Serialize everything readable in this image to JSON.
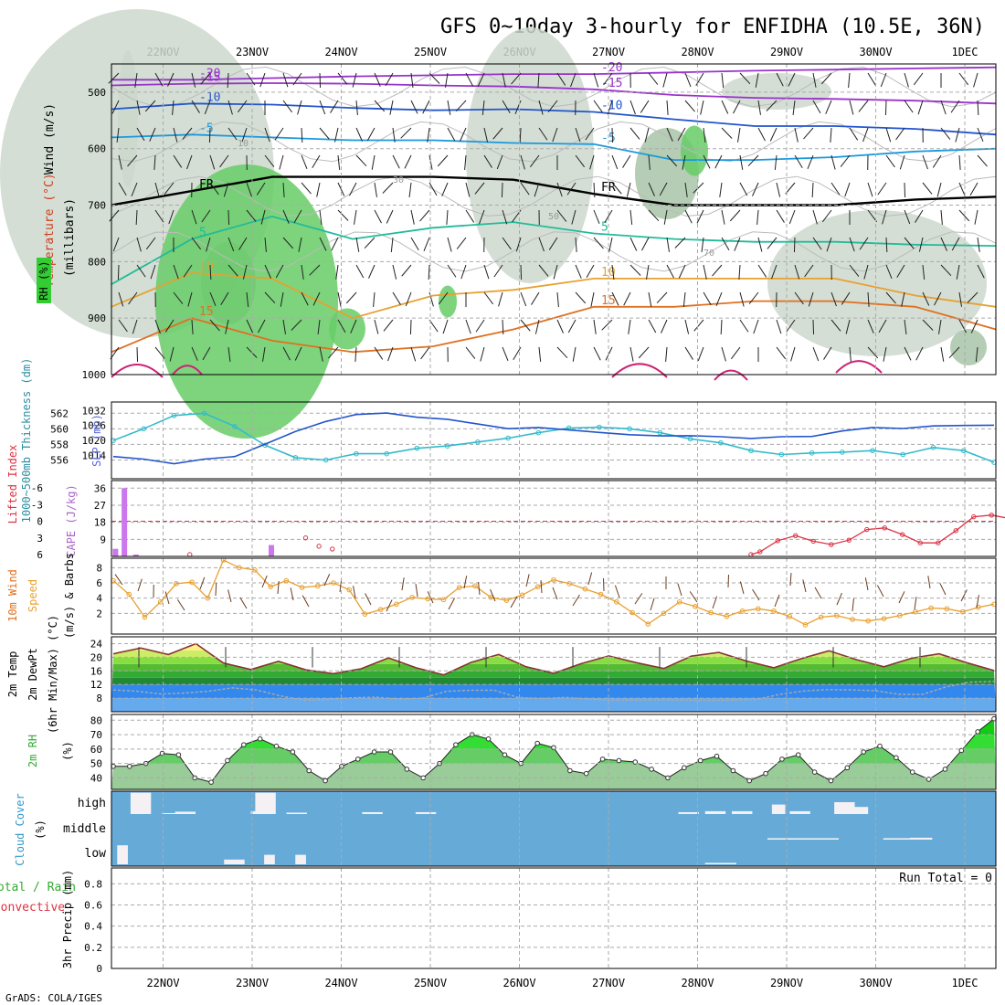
{
  "title": "GFS 0~10day 3-hourly for ENFIDHA (10.5E, 36N)",
  "credit": "GrADS: COLA/IGES",
  "dates": [
    "22NOV",
    "23NOV",
    "24NOV",
    "25NOV",
    "26NOV",
    "27NOV",
    "28NOV",
    "29NOV",
    "30NOV",
    "1DEC"
  ],
  "colors": {
    "rh": "#33cc33",
    "temp": "#e8a030",
    "purple": "#9933cc",
    "blue": "#2255cc",
    "cyan": "#33bbcc",
    "red": "#dd3344",
    "sky": "#66aad8"
  },
  "chart_data": [
    {
      "type": "contour",
      "name": "upper-air",
      "ylabel_wind": "Wind (m/s)",
      "ylabel_temp": "Temperature (°C)",
      "ylabel_rh": "RH (%)",
      "ylabel_p": "(millibars)",
      "yticks": [
        "500",
        "600",
        "700",
        "800",
        "900",
        "1000"
      ],
      "ylim": [
        450,
        1000
      ],
      "temp_contours": [
        {
          "label": "-20",
          "color": "#9933cc",
          "p": [
            478,
            478,
            475,
            472,
            470,
            468,
            468,
            465,
            462,
            460,
            458,
            456
          ]
        },
        {
          "label": "-15",
          "color": "#9933cc",
          "p": [
            488,
            485,
            484,
            485,
            488,
            490,
            495,
            505,
            510,
            512,
            515,
            520
          ]
        },
        {
          "label": "-10",
          "color": "#2255cc",
          "p": [
            530,
            520,
            522,
            528,
            532,
            530,
            535,
            548,
            560,
            560,
            565,
            575
          ]
        },
        {
          "label": "-5",
          "color": "#1a99dd",
          "p": [
            580,
            575,
            580,
            585,
            585,
            590,
            592,
            620,
            620,
            615,
            605,
            600
          ]
        },
        {
          "label": "FR",
          "color": "#000000",
          "p": [
            700,
            675,
            650,
            650,
            650,
            655,
            680,
            700,
            700,
            700,
            690,
            685
          ]
        },
        {
          "label": "5",
          "color": "#22bb99",
          "p": [
            840,
            760,
            720,
            760,
            740,
            730,
            750,
            760,
            765,
            765,
            770,
            772
          ]
        },
        {
          "label": "10",
          "color": "#e8a030",
          "p": [
            880,
            820,
            830,
            900,
            860,
            850,
            830,
            830,
            830,
            830,
            860,
            880
          ]
        },
        {
          "label": "15",
          "color": "#e07020",
          "p": [
            960,
            900,
            940,
            960,
            950,
            920,
            880,
            880,
            870,
            870,
            880,
            920
          ]
        }
      ],
      "contour_labels": [
        "-20",
        "-15",
        "-15",
        "-10",
        "-10",
        "-5",
        "-5",
        "FR",
        "FR",
        "5",
        "5",
        "10",
        "10",
        "15",
        "15",
        "10",
        "30",
        "50",
        "70",
        "90"
      ]
    },
    {
      "type": "line",
      "name": "slp-thickness",
      "ylabel_thk": "1000~500mb Thickness (dm)",
      "ylabel_slp": "SLP (mb)",
      "yticks_thk": [
        "556",
        "558",
        "560",
        "562"
      ],
      "yticks_slp": [
        "1014",
        "1020",
        "1026",
        "1032"
      ],
      "series": [
        {
          "name": "Thickness",
          "color": "#33bbcc",
          "values": [
            558.5,
            560.0,
            561.7,
            562.0,
            560.3,
            557.9,
            556.3,
            556.0,
            556.8,
            556.8,
            557.5,
            557.8,
            558.3,
            558.8,
            559.5,
            560.1,
            560.2,
            560.0,
            559.5,
            558.7,
            558.2,
            557.2,
            556.7,
            556.9,
            557.0,
            557.2,
            556.7,
            557.6,
            557.2,
            555.7
          ]
        },
        {
          "name": "SLP",
          "color": "#2255cc",
          "values": [
            1013.5,
            1012.5,
            1010.6,
            1012.5,
            1013.5,
            1018.5,
            1023.6,
            1027.6,
            1030.4,
            1031.0,
            1029.3,
            1028.5,
            1026.6,
            1024.7,
            1025.2,
            1024.2,
            1023.2,
            1022.3,
            1021.8,
            1021.9,
            1021.5,
            1020.8,
            1021.5,
            1021.6,
            1023.8,
            1025.2,
            1024.8,
            1025.8,
            1026.0,
            1026.1
          ]
        }
      ]
    },
    {
      "type": "bar",
      "name": "cape-li",
      "ylabel_li": "Lifted Index",
      "ylabel_cape": "CAPE (J/kg)",
      "yticks_li": [
        "-6",
        "-3",
        "0",
        "3",
        "6"
      ],
      "yticks_cape": [
        "9",
        "18",
        "27",
        "36"
      ],
      "cape": [
        {
          "t": 0.05,
          "v": 4
        },
        {
          "t": 0.15,
          "v": 36
        },
        {
          "t": 0.28,
          "v": 1
        },
        {
          "t": 1.8,
          "v": 6
        }
      ],
      "li": [
        {
          "t": 0.3,
          "v": 6
        },
        {
          "t": 1.6,
          "v": 3
        },
        {
          "t": 1.75,
          "v": 4.5
        },
        {
          "t": 1.9,
          "v": 5
        },
        {
          "t": 6.6,
          "v": 6
        },
        {
          "t": 6.7,
          "v": 5.5
        },
        {
          "t": 6.9,
          "v": 3.5
        },
        {
          "t": 7.1,
          "v": 2.6
        },
        {
          "t": 7.3,
          "v": 3.6
        },
        {
          "t": 7.5,
          "v": 4.2
        },
        {
          "t": 7.7,
          "v": 3.4
        },
        {
          "t": 7.9,
          "v": 1.5
        },
        {
          "t": 8.1,
          "v": 1.2
        },
        {
          "t": 8.3,
          "v": 2.4
        },
        {
          "t": 8.5,
          "v": 3.9
        },
        {
          "t": 8.7,
          "v": 3.9
        },
        {
          "t": 8.9,
          "v": 1.7
        },
        {
          "t": 9.1,
          "v": -0.8
        },
        {
          "t": 9.3,
          "v": -1.1
        },
        {
          "t": 9.5,
          "v": -0.5
        },
        {
          "t": 9.6,
          "v": -1.0
        }
      ]
    },
    {
      "type": "line",
      "name": "wind10m",
      "ylabel_a": "10m Wind",
      "ylabel_b": "Speed",
      "ylabel_c": "(m/s) & Barbs",
      "yticks": [
        "2",
        "4",
        "6",
        "8"
      ],
      "color": "#e8a030",
      "values": [
        6.3,
        4.5,
        1.5,
        3.5,
        5.9,
        6.1,
        4.0,
        9.0,
        8.0,
        7.7,
        5.5,
        6.3,
        5.4,
        5.6,
        6.0,
        5.1,
        1.9,
        2.5,
        3.2,
        4.1,
        3.9,
        3.8,
        5.4,
        5.6,
        4.1,
        3.7,
        4.4,
        5.5,
        6.4,
        5.9,
        5.2,
        4.5,
        3.5,
        2.1,
        0.6,
        2.0,
        3.5,
        2.9,
        2.1,
        1.6,
        2.3,
        2.6,
        2.3,
        1.6,
        0.5,
        1.5,
        1.7,
        1.2,
        1.0,
        1.3,
        1.7,
        2.2,
        2.7,
        2.6,
        2.2,
        2.8,
        3.2
      ]
    },
    {
      "type": "area",
      "name": "temp-dewpt",
      "ylabel_a": "2m Temp",
      "ylabel_b": "2m DewPt",
      "ylabel_c": "(6hr Min/Max) (°C)",
      "yticks": [
        "8",
        "12",
        "16",
        "20",
        "24"
      ],
      "temp": [
        21.0,
        22.7,
        20.8,
        24.0,
        18.3,
        16.4,
        18.8,
        16.3,
        15.2,
        16.6,
        19.8,
        16.9,
        14.8,
        18.5,
        20.8,
        17.2,
        15.3,
        18.1,
        20.4,
        18.4,
        16.7,
        20.3,
        21.4,
        18.9,
        16.9,
        19.6,
        21.9,
        19.3,
        17.2,
        19.7,
        21.0,
        18.4,
        16.1
      ],
      "dewpt": [
        10.4,
        10.0,
        9.2,
        9.5,
        10.0,
        11.0,
        10.4,
        8.7,
        7.4,
        7.6,
        8.1,
        8.3,
        7.7,
        8.0,
        10.0,
        10.3,
        10.3,
        8.2,
        7.9,
        8.2,
        7.7,
        7.4,
        7.4,
        7.5,
        7.4,
        7.3,
        7.4,
        7.6,
        9.1,
        10.1,
        10.5,
        10.4,
        10.2,
        9.1,
        9.1,
        11.3,
        12.7,
        12.9
      ]
    },
    {
      "type": "area",
      "name": "rh2m",
      "ylabel_a": "2m RH",
      "ylabel_b": "(%)",
      "yticks": [
        "40",
        "50",
        "60",
        "70",
        "80"
      ],
      "values": [
        48,
        48,
        50,
        57,
        56,
        40,
        37,
        52,
        63,
        67,
        62,
        58,
        45,
        38,
        48,
        53,
        58,
        58,
        46,
        40,
        50,
        63,
        70,
        67,
        56,
        50,
        64,
        61,
        45,
        43,
        53,
        52,
        51,
        46,
        40,
        47,
        52,
        55,
        45,
        38,
        43,
        53,
        56,
        44,
        38,
        47,
        58,
        62,
        54,
        44,
        39,
        46,
        59,
        72,
        81
      ]
    },
    {
      "type": "bar",
      "name": "cloud",
      "ylabel_a": "Cloud Cover",
      "ylabel_b": "(%)",
      "levels": [
        "high",
        "middle",
        "low"
      ],
      "high": [
        {
          "t": 0.25,
          "w": 0.23,
          "v": 90
        },
        {
          "t": 0.75,
          "w": 0.23,
          "v": 10
        },
        {
          "t": 0.6,
          "w": 0.23,
          "v": 4
        },
        {
          "t": 1.65,
          "w": 0.23,
          "v": 90
        },
        {
          "t": 2.0,
          "w": 0.23,
          "v": 6
        },
        {
          "t": 1.6,
          "w": 0.23,
          "v": 12
        },
        {
          "t": 2.85,
          "w": 0.23,
          "v": 8
        },
        {
          "t": 3.45,
          "w": 0.23,
          "v": 8
        },
        {
          "t": 6.4,
          "w": 0.23,
          "v": 8
        },
        {
          "t": 6.7,
          "w": 0.23,
          "v": 12
        },
        {
          "t": 7.0,
          "w": 0.23,
          "v": 12
        },
        {
          "t": 7.45,
          "w": 0.15,
          "v": 40
        },
        {
          "t": 7.65,
          "w": 0.23,
          "v": 12
        },
        {
          "t": 8.15,
          "w": 0.23,
          "v": 50
        },
        {
          "t": 8.3,
          "w": 0.23,
          "v": 30
        }
      ],
      "middle": [
        {
          "t": 7.4,
          "w": 0.8,
          "v": 6
        },
        {
          "t": 8.7,
          "w": 0.3,
          "v": 6
        },
        {
          "t": 9.0,
          "w": 0.25,
          "v": 8
        }
      ],
      "low": [
        {
          "t": 0.1,
          "w": 0.12,
          "v": 80
        },
        {
          "t": 1.3,
          "w": 0.23,
          "v": 20
        },
        {
          "t": 1.75,
          "w": 0.12,
          "v": 40
        },
        {
          "t": 2.1,
          "w": 0.12,
          "v": 40
        },
        {
          "t": 6.7,
          "w": 0.35,
          "v": 6
        }
      ]
    },
    {
      "type": "bar",
      "name": "precip",
      "ylabel_a": "Total / Rain",
      "ylabel_b": "Convective",
      "ylabel_c": "3hr Precip (mm)",
      "yticks": [
        "0",
        "0.2",
        "0.4",
        "0.6",
        "0.8"
      ],
      "run_total": "Run Total = 0",
      "values": []
    }
  ]
}
